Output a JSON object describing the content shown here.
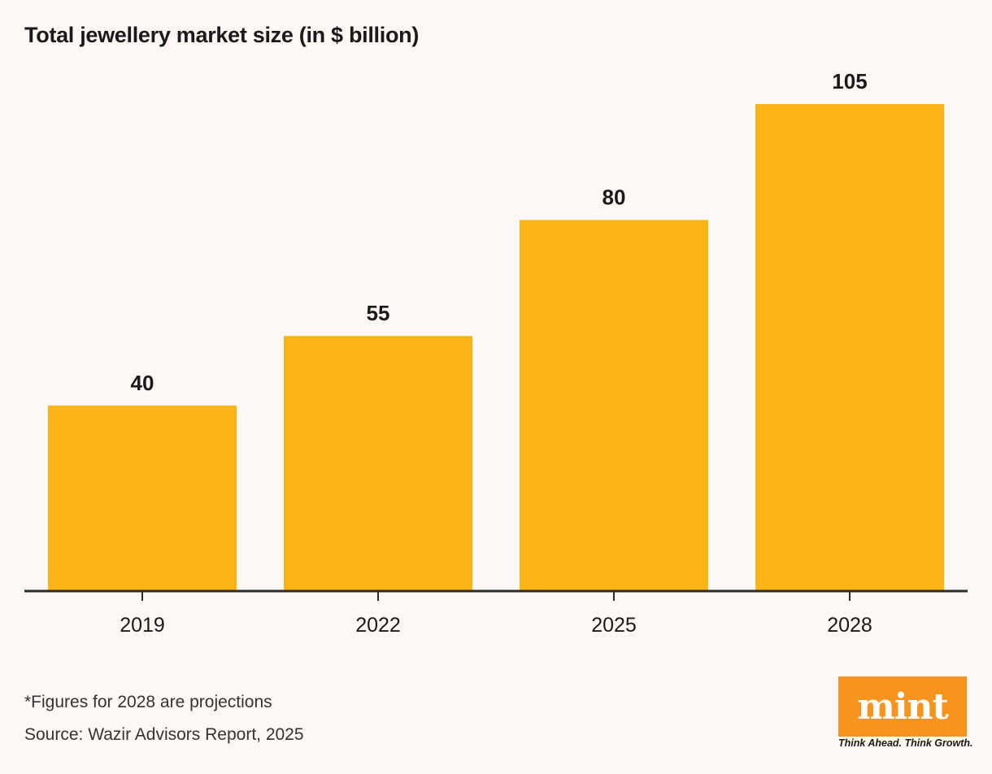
{
  "colors": {
    "bar": "#fdb515",
    "axis": "#2b2b2b",
    "brand": "#f7941d"
  },
  "chart_data": {
    "type": "bar",
    "title": "Total jewellery market size (in $ billion)",
    "categories": [
      "2019",
      "2022",
      "2025",
      "2028"
    ],
    "values": [
      40,
      55,
      80,
      105
    ],
    "xlabel": "",
    "ylabel": "",
    "ylim": [
      0,
      105
    ],
    "grid": false
  },
  "footnote": "*Figures for 2028 are projections",
  "source": "Source: Wazir Advisors Report, 2025",
  "brand": {
    "logo_text": "mint",
    "tagline": "Think Ahead. Think Growth."
  }
}
